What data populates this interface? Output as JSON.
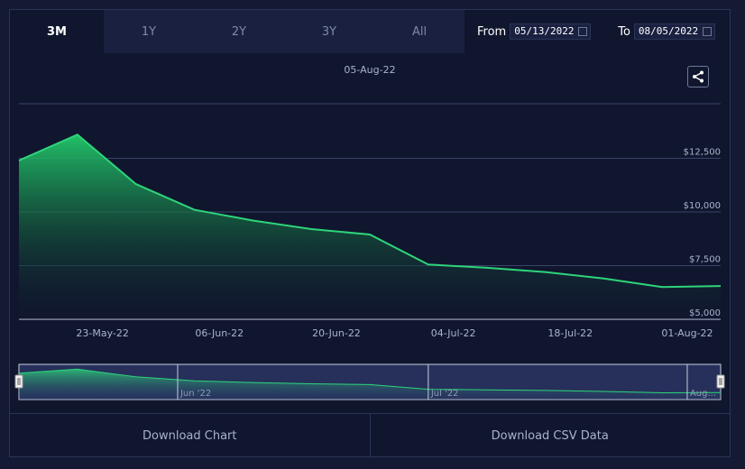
{
  "tabs": [
    {
      "label": "3M",
      "active": true
    },
    {
      "label": "1Y",
      "active": false
    },
    {
      "label": "2Y",
      "active": false
    },
    {
      "label": "3Y",
      "active": false
    },
    {
      "label": "All",
      "active": false
    }
  ],
  "range": {
    "from_label": "From",
    "from_value": "05/13/2022",
    "to_label": "To",
    "to_value": "08/05/2022"
  },
  "buttons": {
    "download_chart": "Download Chart",
    "download_csv": "Download CSV Data"
  },
  "icons": {
    "share": "share-icon",
    "calendar": "calendar-icon",
    "handle": "navigator-handle-icon"
  },
  "colors": {
    "line": "#2ed47a",
    "background": "#10162e"
  },
  "chart_data": {
    "type": "area",
    "title": "05-Aug-22",
    "x": [
      "2022-05-13",
      "2022-05-20",
      "2022-05-27",
      "2022-06-03",
      "2022-06-10",
      "2022-06-17",
      "2022-06-24",
      "2022-07-01",
      "2022-07-08",
      "2022-07-15",
      "2022-07-22",
      "2022-07-29",
      "2022-08-05"
    ],
    "values": [
      12400,
      13600,
      11300,
      10100,
      9600,
      9200,
      8950,
      7550,
      7400,
      7200,
      6900,
      6500,
      6550
    ],
    "ylim": [
      5000,
      15000
    ],
    "yticks": [
      {
        "value": 5000,
        "label": "$5,000"
      },
      {
        "value": 7500,
        "label": "$7,500"
      },
      {
        "value": 10000,
        "label": "$10,000"
      },
      {
        "value": 12500,
        "label": "$12,500"
      }
    ],
    "xticks": [
      {
        "date": "2022-05-23",
        "label": "23-May-22"
      },
      {
        "date": "2022-06-06",
        "label": "06-Jun-22"
      },
      {
        "date": "2022-06-20",
        "label": "20-Jun-22"
      },
      {
        "date": "2022-07-04",
        "label": "04-Jul-22"
      },
      {
        "date": "2022-07-18",
        "label": "18-Jul-22"
      },
      {
        "date": "2022-08-01",
        "label": "01-Aug-22"
      }
    ],
    "navigator_labels": [
      {
        "date": "2022-06-01",
        "label": "Jun '22"
      },
      {
        "date": "2022-07-01",
        "label": "Jul '22"
      },
      {
        "date": "2022-08-01",
        "label": "Aug..."
      }
    ],
    "grid": true,
    "legend": false
  }
}
